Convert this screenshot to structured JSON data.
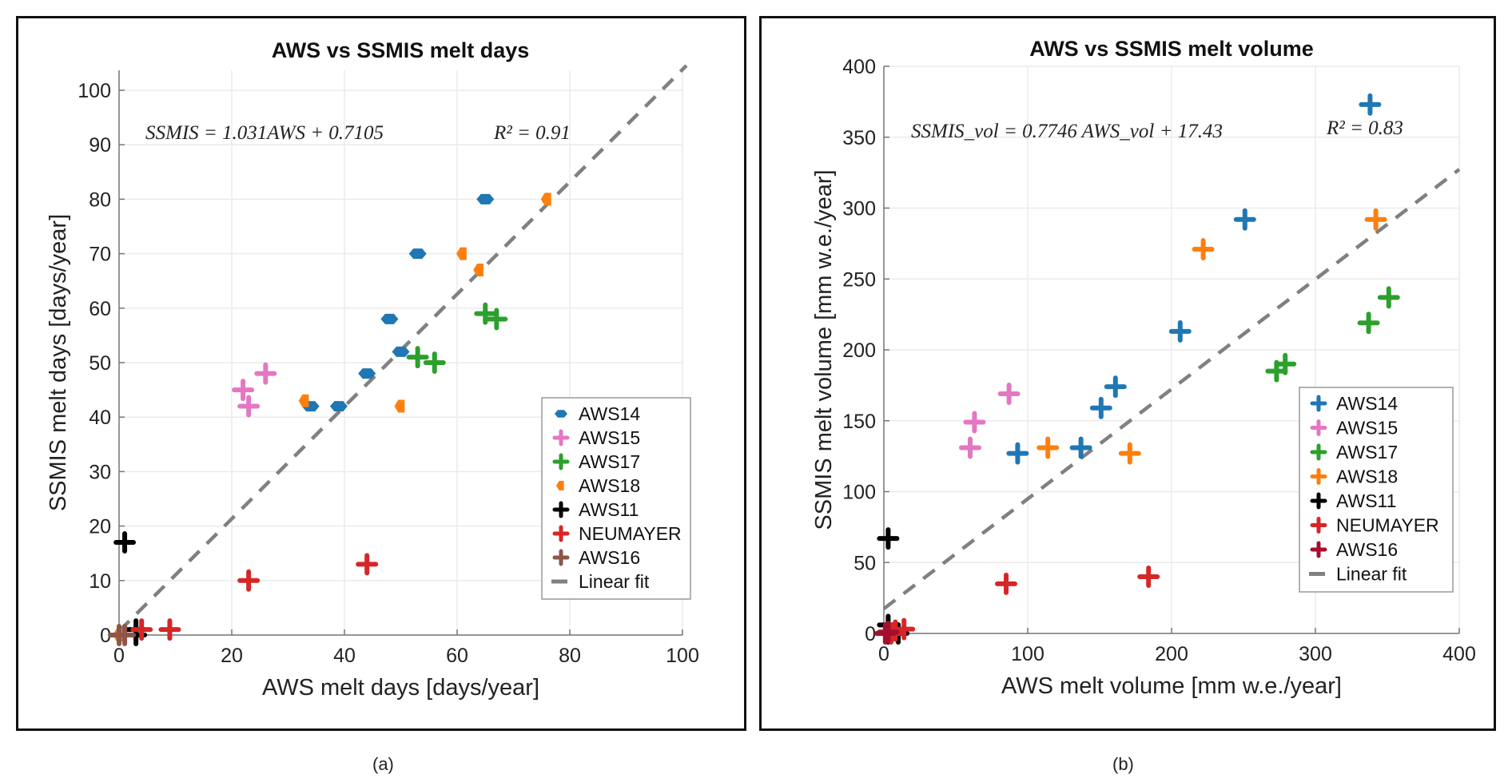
{
  "captions": {
    "a": "(a)",
    "b": "(b)"
  },
  "colors": {
    "AWS14": "#1f77b4",
    "AWS15": "#e377c2",
    "AWS17": "#2ca02c",
    "AWS18": "#ff7f0e",
    "AWS11": "#000000",
    "NEUMAYER": "#d62728",
    "AWS16_a": "#8c564b",
    "AWS16_b": "#a50f2d",
    "fit": "#808080",
    "grid": "#ebebeb"
  },
  "chart_data": [
    {
      "type": "scatter",
      "title": "AWS vs SSMIS melt days",
      "xlabel": "AWS melt days [days/year]",
      "ylabel": "SSMIS melt days [days/year]",
      "xlim": [
        0,
        100
      ],
      "ylim": [
        0,
        100
      ],
      "xticks": [
        0,
        20,
        40,
        60,
        80,
        100
      ],
      "yticks": [
        0,
        10,
        20,
        30,
        40,
        50,
        60,
        70,
        80,
        90,
        100
      ],
      "grid": true,
      "legend_position": "bottom-right",
      "annotations": [
        "SSMIS = 1.031AWS + 0.7105",
        "R² = 0.91"
      ],
      "fit": {
        "slope": 1.031,
        "intercept": 0.7105,
        "label": "Linear fit"
      },
      "series": [
        {
          "name": "AWS14",
          "marker": "hexagon",
          "points": [
            [
              34,
              42
            ],
            [
              39,
              42
            ],
            [
              44,
              48
            ],
            [
              48,
              58
            ],
            [
              50,
              52
            ],
            [
              53,
              70
            ],
            [
              65,
              80
            ]
          ]
        },
        {
          "name": "AWS15",
          "marker": "plus",
          "points": [
            [
              22,
              45
            ],
            [
              23,
              42
            ],
            [
              26,
              48
            ]
          ]
        },
        {
          "name": "AWS17",
          "marker": "plus",
          "points": [
            [
              53,
              51
            ],
            [
              56,
              50
            ],
            [
              65,
              59
            ],
            [
              67,
              58
            ]
          ]
        },
        {
          "name": "AWS18",
          "marker": "half-hexagon",
          "points": [
            [
              33,
              43
            ],
            [
              50,
              42
            ],
            [
              61,
              70
            ],
            [
              64,
              67
            ],
            [
              76,
              80
            ],
            [
              0,
              0
            ]
          ]
        },
        {
          "name": "AWS11",
          "marker": "plus",
          "points": [
            [
              1,
              17
            ],
            [
              3,
              0
            ],
            [
              3,
              1
            ]
          ]
        },
        {
          "name": "NEUMAYER",
          "marker": "plus",
          "points": [
            [
              23,
              10
            ],
            [
              44,
              13
            ],
            [
              4,
              1
            ],
            [
              9,
              1
            ]
          ]
        },
        {
          "name": "AWS16",
          "marker": "plus",
          "points": [
            [
              0,
              0
            ],
            [
              1,
              0
            ]
          ]
        }
      ]
    },
    {
      "type": "scatter",
      "title": "AWS vs SSMIS melt volume",
      "xlabel": "AWS melt volume [mm w.e./year]",
      "ylabel": "SSMIS melt volume [mm w.e./year]",
      "xlim": [
        0,
        400
      ],
      "ylim": [
        0,
        400
      ],
      "xticks": [
        0,
        100,
        200,
        300,
        400
      ],
      "yticks": [
        0,
        50,
        100,
        150,
        200,
        250,
        300,
        350,
        400
      ],
      "grid": true,
      "legend_position": "bottom-right",
      "annotations": [
        "SSMIS_vol = 0.7746 AWS_vol + 17.43",
        "R² = 0.83"
      ],
      "fit": {
        "slope": 0.7746,
        "intercept": 17.43,
        "label": "Linear fit"
      },
      "series": [
        {
          "name": "AWS14",
          "marker": "plus",
          "points": [
            [
              93,
              127
            ],
            [
              137,
              131
            ],
            [
              151,
              159
            ],
            [
              161,
              174
            ],
            [
              206,
              213
            ],
            [
              251,
              292
            ],
            [
              338,
              373
            ]
          ]
        },
        {
          "name": "AWS15",
          "marker": "plus",
          "points": [
            [
              60,
              131
            ],
            [
              63,
              149
            ],
            [
              87,
              169
            ]
          ]
        },
        {
          "name": "AWS17",
          "marker": "plus",
          "points": [
            [
              273,
              185
            ],
            [
              279,
              190
            ],
            [
              337,
              219
            ],
            [
              351,
              237
            ]
          ]
        },
        {
          "name": "AWS18",
          "marker": "plus",
          "points": [
            [
              114,
              131
            ],
            [
              171,
              127
            ],
            [
              222,
              271
            ],
            [
              342,
              292
            ]
          ]
        },
        {
          "name": "AWS11",
          "marker": "plus",
          "points": [
            [
              3,
              67
            ],
            [
              3,
              6
            ],
            [
              10,
              0
            ],
            [
              3,
              0
            ]
          ]
        },
        {
          "name": "NEUMAYER",
          "marker": "plus",
          "points": [
            [
              85,
              35
            ],
            [
              184,
              40
            ],
            [
              8,
              2
            ],
            [
              14,
              3
            ],
            [
              5,
              0
            ]
          ]
        },
        {
          "name": "AWS16",
          "marker": "plus",
          "points": [
            [
              1,
              0
            ],
            [
              3,
              1
            ]
          ]
        }
      ]
    }
  ]
}
